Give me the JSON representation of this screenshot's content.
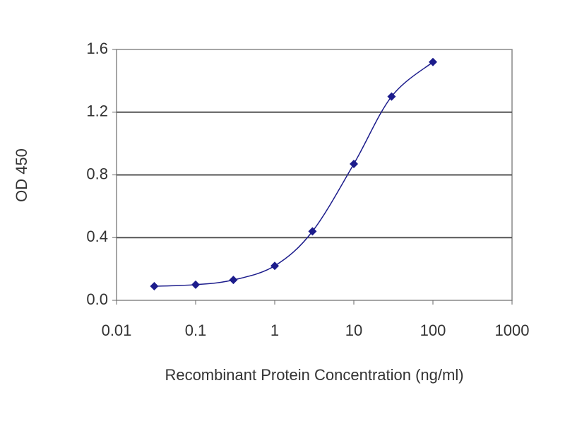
{
  "chart_data": {
    "type": "line",
    "xlabel": "Recombinant Protein Concentration (ng/ml)",
    "ylabel": "OD 450",
    "x": [
      0.03,
      0.1,
      0.3,
      1,
      3,
      10,
      30,
      100
    ],
    "series": [
      {
        "color": "#1c1c8c",
        "values": [
          0.09,
          0.1,
          0.13,
          0.22,
          0.44,
          0.87,
          1.3,
          1.52
        ]
      }
    ],
    "xscale": "log",
    "xlim": [
      0.01,
      1000
    ],
    "xticks": [
      0.01,
      0.1,
      1,
      10,
      100,
      1000
    ],
    "ylim": [
      0,
      1.6
    ],
    "yticks": [
      {
        "value": 0,
        "label": "0.0"
      },
      0.4,
      0.8,
      1.2,
      1.6
    ],
    "grid": true
  }
}
